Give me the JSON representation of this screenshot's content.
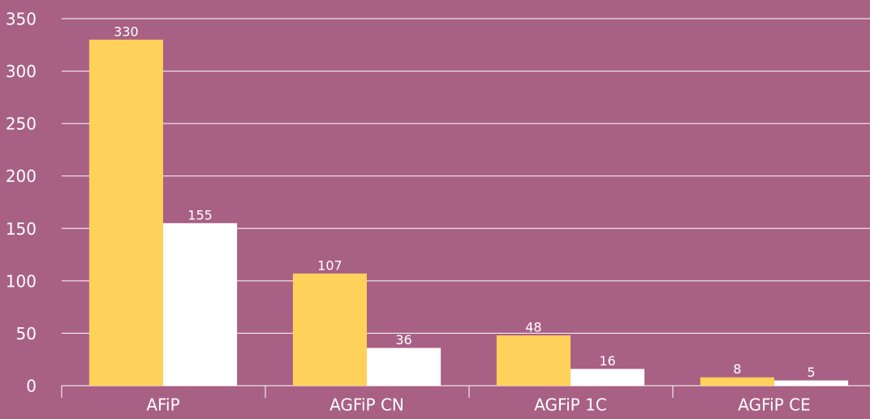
{
  "chart_data": {
    "type": "bar",
    "categories": [
      "AFiP",
      "AGFiP CN",
      "AGFiP 1C",
      "AGFiP CE"
    ],
    "series": [
      {
        "color": "#fdd15a",
        "values": [
          330,
          107,
          48,
          8
        ]
      },
      {
        "color": "#ffffff",
        "values": [
          155,
          36,
          16,
          5
        ]
      }
    ],
    "ylim": [
      0,
      350
    ],
    "yticks": [
      0,
      50,
      100,
      150,
      200,
      250,
      300,
      350
    ],
    "grid": true
  }
}
